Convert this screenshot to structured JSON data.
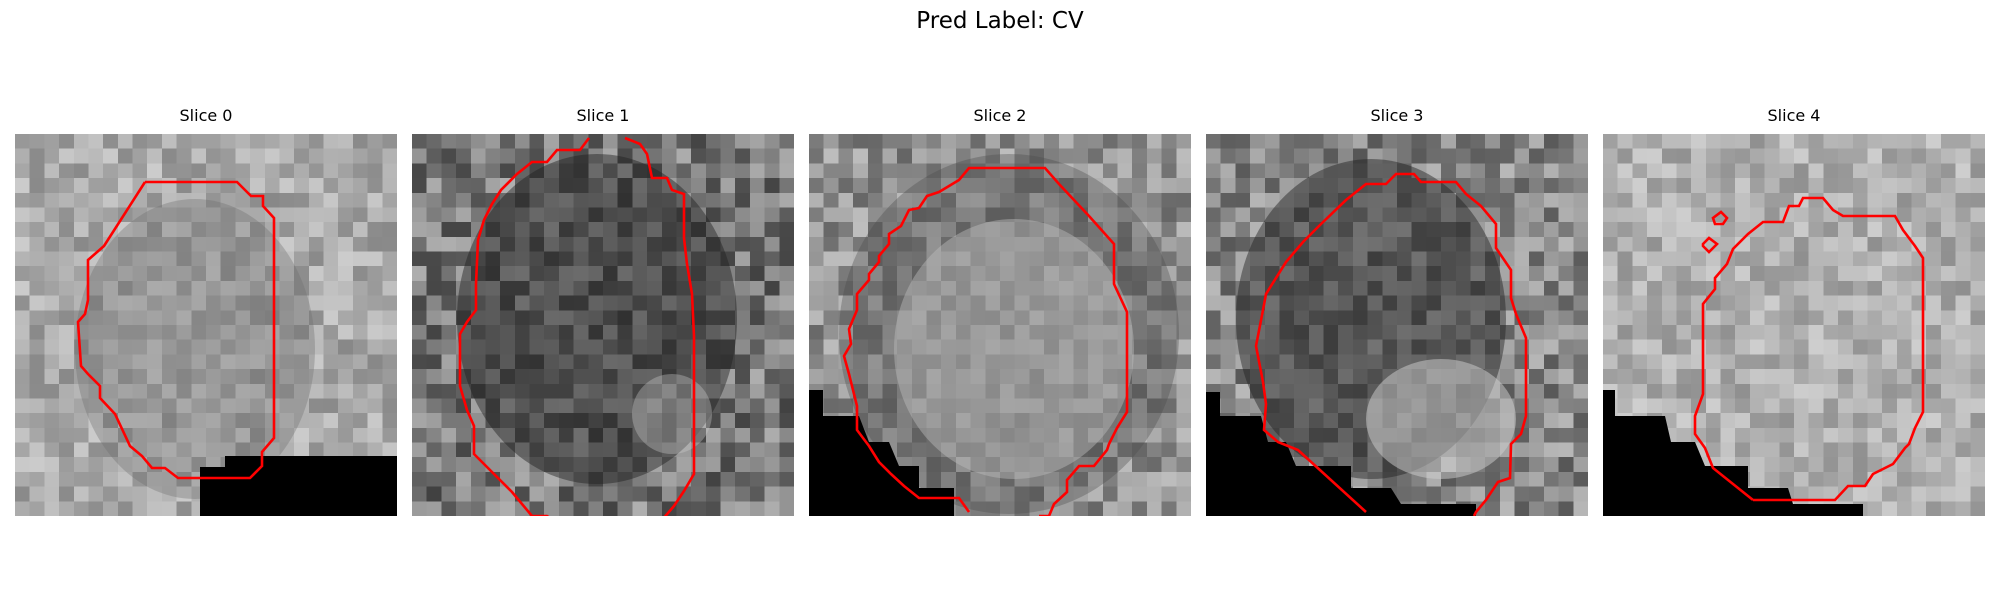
{
  "figure": {
    "title": "Pred Label: CV"
  },
  "colors": {
    "contour": "#ff0000",
    "background": "#ffffff",
    "text": "#000000"
  },
  "panels": [
    {
      "title": "Slice 0"
    },
    {
      "title": "Slice 1"
    },
    {
      "title": "Slice 2"
    },
    {
      "title": "Slice 3"
    },
    {
      "title": "Slice 4"
    }
  ]
}
